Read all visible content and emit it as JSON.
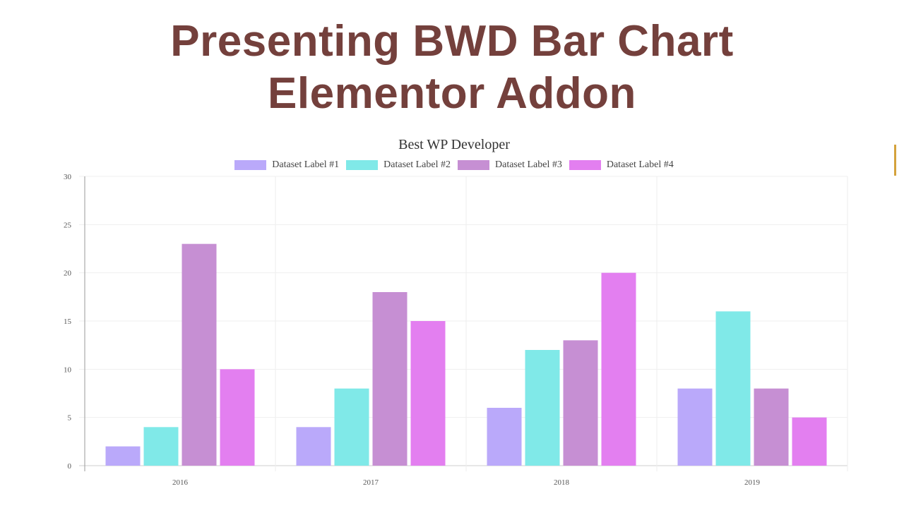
{
  "page": {
    "heading_line1": "Presenting BWD Bar Chart",
    "heading_line2": "Elementor Addon",
    "heading_color": "#74403c",
    "accent_color": "#d4a23c"
  },
  "chart_data": {
    "type": "bar",
    "title": "Best WP Developer",
    "xlabel": "",
    "ylabel": "",
    "categories": [
      "2016",
      "2017",
      "2018",
      "2019"
    ],
    "series": [
      {
        "name": "Dataset Label #1",
        "color": "#baa9fa",
        "values": [
          2,
          4,
          6,
          8
        ]
      },
      {
        "name": "Dataset Label #2",
        "color": "#80e9e8",
        "values": [
          4,
          8,
          12,
          16
        ]
      },
      {
        "name": "Dataset Label #3",
        "color": "#c68fd3",
        "values": [
          23,
          18,
          13,
          8
        ]
      },
      {
        "name": "Dataset Label #4",
        "color": "#e37ff0",
        "values": [
          10,
          15,
          20,
          5
        ]
      }
    ],
    "ylim": [
      0,
      30
    ],
    "yticks": [
      0,
      5,
      10,
      15,
      20,
      25,
      30
    ],
    "grid": true,
    "legend_position": "top"
  }
}
